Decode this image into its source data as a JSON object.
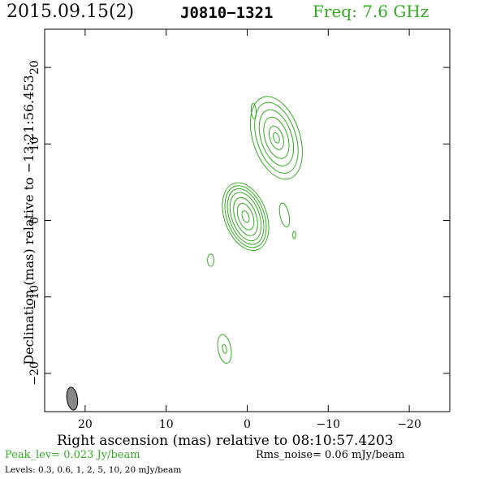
{
  "header": {
    "date": "2015.09.15(2)",
    "source": "J0810−1321",
    "freq": "Freq: 7.6 GHz"
  },
  "chart_data": {
    "type": "contour",
    "xlabel": "Right ascension (mas) relative to 08:10:57.4203",
    "ylabel": "Declination (mas) relative to −13:21:56.453",
    "xlim": [
      25,
      -25
    ],
    "ylim": [
      -25,
      25
    ],
    "xticks": [
      20,
      10,
      0,
      -10,
      -20
    ],
    "xtick_labels": [
      "20",
      "10",
      "0",
      "−10",
      "−20"
    ],
    "yticks": [
      20,
      10,
      0,
      -10,
      -20
    ],
    "ytick_labels": [
      "20",
      "10",
      "0",
      "−10",
      "−20"
    ],
    "contour_levels_mjy": [
      0.3,
      0.6,
      1,
      2,
      5,
      10,
      20
    ],
    "components": [
      {
        "name": "core",
        "x": 0.2,
        "y": 0.5,
        "levels": [
          {
            "rx": 2.6,
            "ry": 4.6,
            "rot": -20
          },
          {
            "rx": 2.3,
            "ry": 4.2,
            "rot": -20
          },
          {
            "rx": 2.0,
            "ry": 3.8,
            "rot": -20
          },
          {
            "rx": 1.7,
            "ry": 3.3,
            "rot": -20
          },
          {
            "rx": 1.3,
            "ry": 2.6,
            "rot": -20
          },
          {
            "rx": 0.9,
            "ry": 1.8,
            "rot": -20
          },
          {
            "rx": 0.4,
            "ry": 0.8,
            "rot": -20
          }
        ]
      },
      {
        "name": "jet",
        "x": -3.6,
        "y": 10.8,
        "levels": [
          {
            "rx": 2.9,
            "ry": 5.6,
            "rot": -18
          },
          {
            "rx": 2.4,
            "ry": 4.8,
            "rot": -18
          },
          {
            "rx": 1.9,
            "ry": 3.8,
            "rot": -18
          },
          {
            "rx": 1.4,
            "ry": 2.8,
            "rot": -18
          },
          {
            "rx": 0.8,
            "ry": 1.6,
            "rot": -18
          },
          {
            "rx": 0.35,
            "ry": 0.7,
            "rot": -18
          }
        ]
      },
      {
        "name": "blob-east",
        "x": 2.8,
        "y": -16.8,
        "levels": [
          {
            "rx": 0.8,
            "ry": 1.9,
            "rot": -10
          },
          {
            "rx": 0.25,
            "ry": 0.6,
            "rot": -10
          }
        ]
      },
      {
        "name": "blob-west",
        "x": -4.6,
        "y": 0.7,
        "levels": [
          {
            "rx": 0.55,
            "ry": 1.6,
            "rot": -12
          }
        ]
      },
      {
        "name": "blob-small-east",
        "x": 4.5,
        "y": -5.2,
        "levels": [
          {
            "rx": 0.4,
            "ry": 0.8,
            "rot": 0
          }
        ]
      },
      {
        "name": "blob-north",
        "x": -0.8,
        "y": 14.3,
        "levels": [
          {
            "rx": 0.3,
            "ry": 1.0,
            "rot": -5
          }
        ]
      },
      {
        "name": "blob-tiny",
        "x": -5.8,
        "y": -1.9,
        "levels": [
          {
            "rx": 0.18,
            "ry": 0.5,
            "rot": 0
          }
        ]
      }
    ],
    "beam": {
      "x": 21.6,
      "y": -23.3,
      "major_mas": 3.0,
      "minor_mas": 1.3,
      "pa_deg": -8
    }
  },
  "colors": {
    "contour": "#33aa22",
    "accent_text": "#33aa22",
    "beam_fill": "#888888",
    "axes": "#000000"
  },
  "footer": {
    "peak": "Peak_lev=  0.023 Jy/beam",
    "rms": "Rms_noise= 0.06 mJy/beam",
    "levels": "Levels: 0.3, 0.6,    1,    2,    5,   10,   20 mJy/beam"
  }
}
